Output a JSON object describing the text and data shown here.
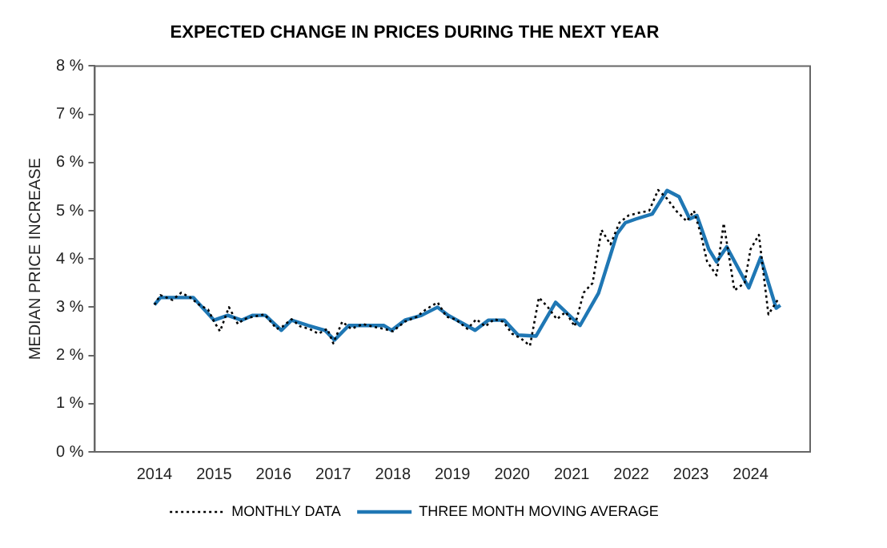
{
  "chart_data": {
    "type": "line",
    "title": "EXPECTED CHANGE IN PRICES DURING THE NEXT YEAR",
    "ylabel": "MEDIAN PRICE INCREASE",
    "xlim": [
      2013,
      2025
    ],
    "xticks": [
      2014,
      2015,
      2016,
      2017,
      2018,
      2019,
      2020,
      2021,
      2022,
      2023,
      2024
    ],
    "ylim": [
      0,
      8
    ],
    "yticks": [
      {
        "value": 0,
        "label": "0 %"
      },
      {
        "value": 1,
        "label": "1 %"
      },
      {
        "value": 2,
        "label": "2 %"
      },
      {
        "value": 3,
        "label": "3 %"
      },
      {
        "value": 4,
        "label": "4 %"
      },
      {
        "value": 5,
        "label": "5 %"
      },
      {
        "value": 6,
        "label": "6 %"
      },
      {
        "value": 7,
        "label": "7 %"
      },
      {
        "value": 8,
        "label": "8 %"
      }
    ],
    "grid": false,
    "legend": "bottom",
    "marker": "none",
    "series": [
      {
        "name": "MONTHLY DATA",
        "color": "#000000",
        "line_style": "dotted",
        "x": [
          2014.0,
          2014.1,
          2014.3,
          2014.45,
          2014.6,
          2014.75,
          2014.9,
          2015.0,
          2015.1,
          2015.25,
          2015.4,
          2015.5,
          2015.65,
          2015.85,
          2016.05,
          2016.15,
          2016.3,
          2016.45,
          2016.6,
          2016.75,
          2016.9,
          2017.0,
          2017.15,
          2017.3,
          2017.5,
          2017.65,
          2017.85,
          2018.0,
          2018.2,
          2018.4,
          2018.55,
          2018.75,
          2018.9,
          2019.05,
          2019.25,
          2019.4,
          2019.55,
          2019.7,
          2019.85,
          2020.0,
          2020.15,
          2020.3,
          2020.45,
          2020.6,
          2020.75,
          2020.9,
          2021.05,
          2021.2,
          2021.35,
          2021.5,
          2021.65,
          2021.8,
          2021.95,
          2022.1,
          2022.3,
          2022.45,
          2022.6,
          2022.75,
          2022.93,
          2023.05,
          2023.17,
          2023.27,
          2023.43,
          2023.55,
          2023.73,
          2023.9,
          2024.0,
          2024.14,
          2024.3,
          2024.48
        ],
        "values": [
          3.05,
          3.25,
          3.15,
          3.3,
          3.2,
          3.05,
          2.95,
          2.7,
          2.5,
          3.0,
          2.65,
          2.75,
          2.8,
          2.85,
          2.55,
          2.6,
          2.75,
          2.6,
          2.55,
          2.45,
          2.55,
          2.25,
          2.7,
          2.55,
          2.65,
          2.6,
          2.55,
          2.5,
          2.7,
          2.8,
          2.95,
          3.1,
          2.8,
          2.75,
          2.55,
          2.75,
          2.6,
          2.75,
          2.7,
          2.45,
          2.35,
          2.2,
          3.2,
          3.0,
          2.75,
          2.9,
          2.6,
          3.3,
          3.5,
          4.6,
          4.3,
          4.75,
          4.9,
          4.95,
          5.0,
          5.43,
          5.25,
          5.0,
          4.78,
          5.0,
          4.5,
          3.95,
          3.66,
          4.74,
          3.35,
          3.5,
          4.2,
          4.5,
          2.85,
          3.2
        ]
      },
      {
        "name": "THREE MONTH MOVING AVERAGE",
        "color": "#1f77b4",
        "line_style": "solid",
        "x": [
          2014.0,
          2014.1,
          2014.65,
          2015.0,
          2015.23,
          2015.46,
          2015.65,
          2015.86,
          2016.13,
          2016.3,
          2016.58,
          2016.86,
          2017.02,
          2017.26,
          2017.58,
          2017.85,
          2017.98,
          2018.2,
          2018.48,
          2018.75,
          2018.93,
          2019.38,
          2019.6,
          2019.87,
          2020.1,
          2020.4,
          2020.73,
          2021.14,
          2021.45,
          2021.68,
          2021.76,
          2021.9,
          2022.08,
          2022.35,
          2022.6,
          2022.8,
          2022.98,
          2023.1,
          2023.3,
          2023.43,
          2023.6,
          2023.97,
          2024.17,
          2024.43,
          2024.5
        ],
        "values": [
          3.05,
          3.2,
          3.2,
          2.73,
          2.83,
          2.73,
          2.83,
          2.83,
          2.52,
          2.73,
          2.62,
          2.52,
          2.32,
          2.62,
          2.62,
          2.62,
          2.52,
          2.73,
          2.83,
          3.0,
          2.83,
          2.52,
          2.73,
          2.73,
          2.42,
          2.4,
          3.1,
          2.62,
          3.29,
          4.2,
          4.52,
          4.75,
          4.83,
          4.93,
          5.42,
          5.29,
          4.83,
          4.9,
          4.2,
          3.94,
          4.25,
          3.4,
          4.03,
          2.98,
          3.04
        ]
      }
    ]
  }
}
